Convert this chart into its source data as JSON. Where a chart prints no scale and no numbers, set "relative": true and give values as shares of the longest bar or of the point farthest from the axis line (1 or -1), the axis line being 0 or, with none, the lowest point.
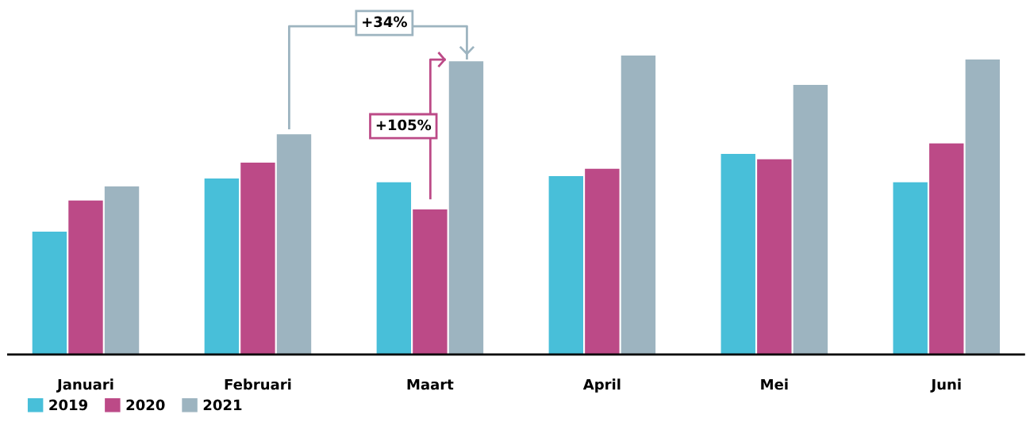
{
  "chart_data": {
    "type": "bar",
    "relative": true,
    "categories": [
      "Januari",
      "Februari",
      "Maart",
      "April",
      "Mei",
      "Juni"
    ],
    "series": [
      {
        "name": "2019",
        "color": "#48bfd9",
        "values": [
          0.411,
          0.589,
          0.576,
          0.597,
          0.671,
          0.576
        ]
      },
      {
        "name": "2020",
        "color": "#bc4a87",
        "values": [
          0.515,
          0.642,
          0.485,
          0.621,
          0.653,
          0.706
        ]
      },
      {
        "name": "2021",
        "color": "#9db4c0",
        "values": [
          0.562,
          0.737,
          0.981,
          1,
          0.902,
          0.987
        ]
      }
    ],
    "annotations": [
      "+34%",
      "+105%"
    ],
    "legend": "bottom left",
    "grid": false
  }
}
